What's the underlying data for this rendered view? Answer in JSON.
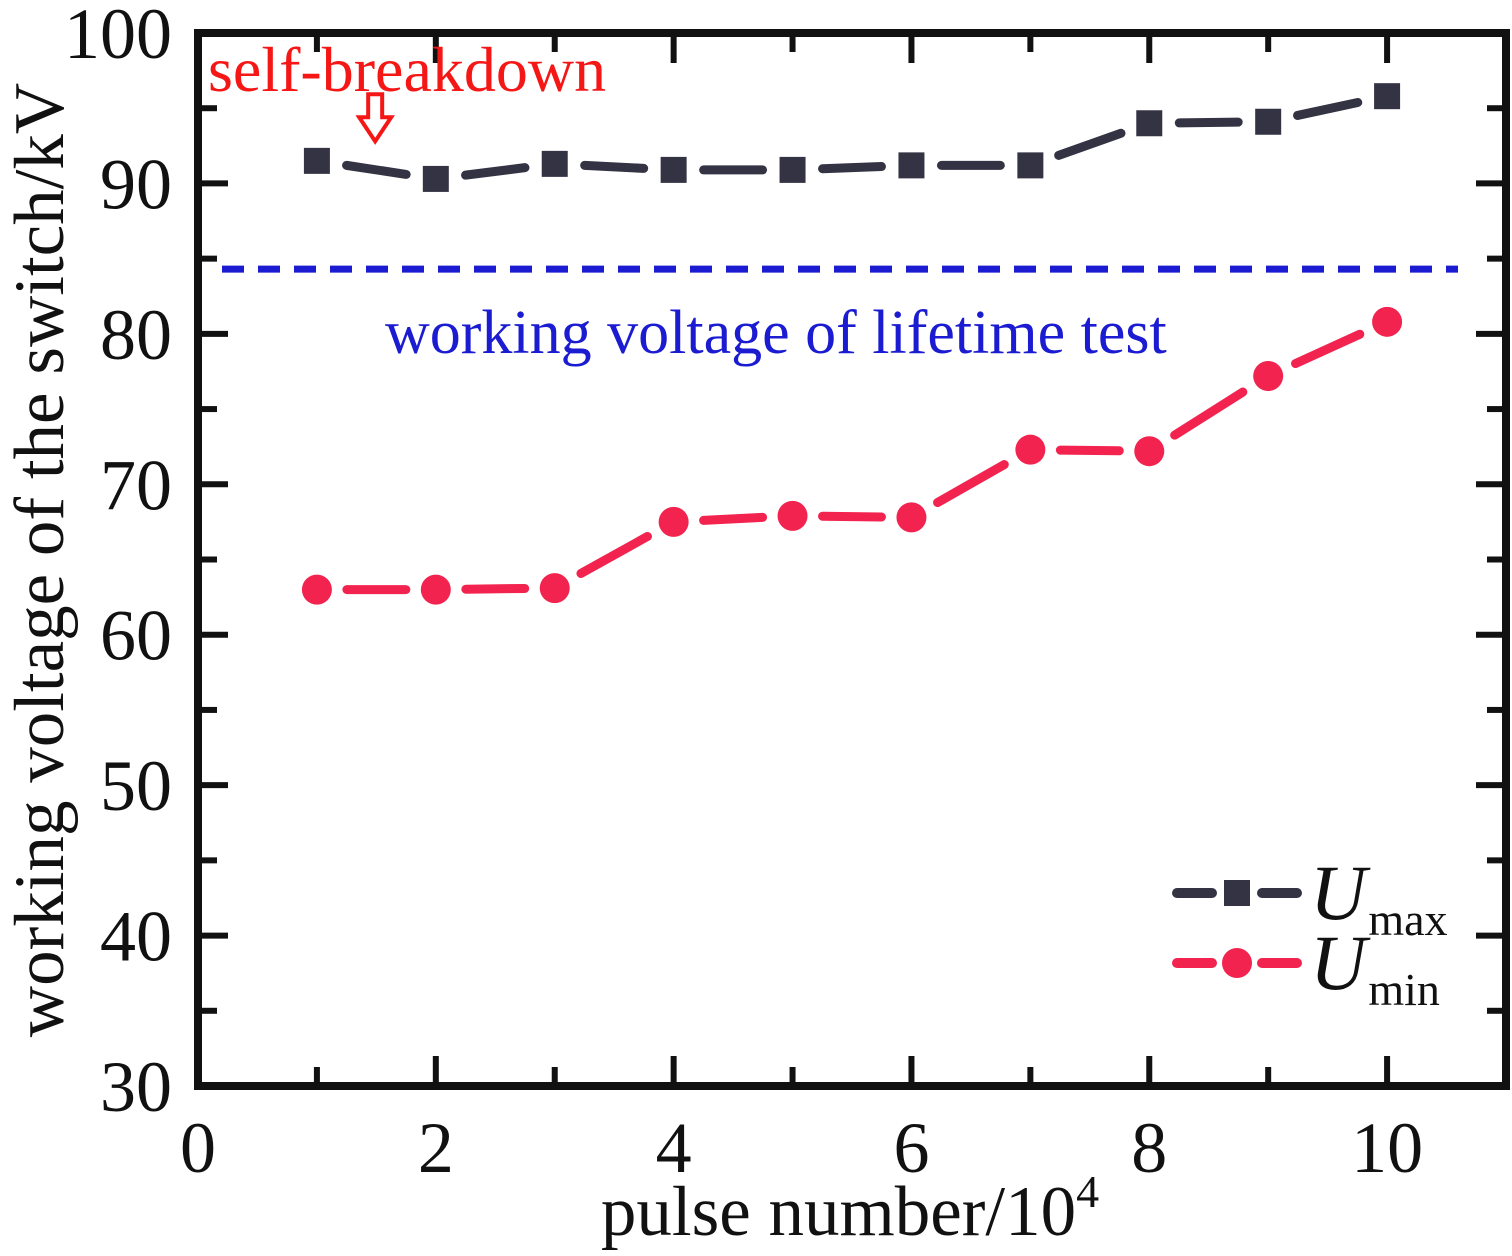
{
  "figure": {
    "background": "#ffffff",
    "axis_color": "#111111"
  },
  "chart_data": {
    "type": "line",
    "title": "",
    "xlabel": {
      "text": "pulse number/10",
      "superscript": "4"
    },
    "ylabel": "working voltage of the switch/kV",
    "xlim": [
      0,
      11
    ],
    "ylim": [
      30,
      100
    ],
    "x_major_ticks": [
      0,
      2,
      4,
      6,
      8,
      10
    ],
    "x_minor_ticks": [
      1,
      3,
      5,
      7,
      9
    ],
    "y_major_ticks": [
      30,
      40,
      50,
      60,
      70,
      80,
      90,
      100
    ],
    "y_minor_ticks": [
      35,
      45,
      55,
      65,
      75,
      85,
      95
    ],
    "grid": false,
    "legend_position": "lower-right",
    "x": [
      1,
      2,
      3,
      4,
      5,
      6,
      7,
      8,
      9,
      10
    ],
    "series": [
      {
        "name": "Umax",
        "label": "U",
        "label_subscript": "max",
        "marker": "square",
        "color": "#333344",
        "values": [
          91.5,
          90.3,
          91.3,
          90.9,
          90.9,
          91.2,
          91.2,
          94.0,
          94.1,
          95.8
        ]
      },
      {
        "name": "Umin",
        "label": "U",
        "label_subscript": "min",
        "marker": "circle",
        "color": "#f2234e",
        "values": [
          63.0,
          63.0,
          63.1,
          67.5,
          67.9,
          67.8,
          72.3,
          72.2,
          77.2,
          80.8
        ]
      }
    ],
    "reference_line": {
      "value": 84.3,
      "style": "dashed",
      "color": "#1b1bd1",
      "label": "working voltage of lifetime test"
    },
    "annotation": {
      "text": "self-breakdown",
      "color": "#f51616",
      "arrow": {
        "direction": "down",
        "points_to_x": 1.49,
        "points_to_y": 92.8
      }
    }
  }
}
